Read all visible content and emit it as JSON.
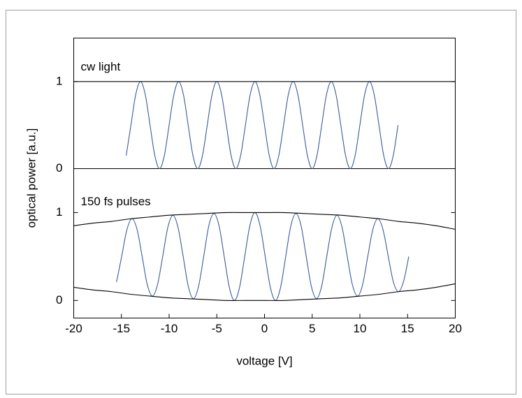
{
  "chart_data": [
    {
      "type": "line",
      "annotation": "cw light",
      "xlim": [
        -20,
        20
      ],
      "ylim": [
        0,
        1.5
      ],
      "yticks": [
        0,
        1
      ],
      "series": [
        {
          "color": "#3b5b9b",
          "x": [
            -14.5,
            -14,
            -13.5,
            -13,
            -12.5,
            -12,
            -11.5,
            -11,
            -10.5,
            -10,
            -9.5,
            -9,
            -8.5,
            -8,
            -7.5,
            -7,
            -6.5,
            -6,
            -5.5,
            -5,
            -4.5,
            -4,
            -3.5,
            -3,
            -2.5,
            -2,
            -1.5,
            -1,
            -0.5,
            0,
            0.5,
            1,
            1.5,
            2,
            2.5,
            3,
            3.5,
            4,
            4.5,
            5,
            5.5,
            6,
            6.5,
            7,
            7.5,
            8,
            8.5,
            9,
            9.5,
            10,
            10.5,
            11,
            11.5,
            12,
            12.5,
            13,
            13.5,
            14
          ],
          "values": [
            0.15,
            0.5,
            0.85,
            1,
            0.85,
            0.5,
            0.15,
            0,
            0.15,
            0.5,
            0.85,
            1,
            0.85,
            0.5,
            0.15,
            0,
            0.15,
            0.5,
            0.85,
            1,
            0.85,
            0.5,
            0.15,
            0,
            0.15,
            0.5,
            0.85,
            1,
            0.85,
            0.5,
            0.15,
            0,
            0.15,
            0.5,
            0.85,
            1,
            0.85,
            0.5,
            0.15,
            0,
            0.15,
            0.5,
            0.85,
            1,
            0.85,
            0.5,
            0.15,
            0,
            0.15,
            0.5,
            0.85,
            1,
            0.85,
            0.5,
            0.15,
            0,
            0.15,
            0.5
          ]
        },
        {
          "color": "#000000",
          "x": [
            -20,
            20
          ],
          "values": [
            1,
            1
          ]
        }
      ]
    },
    {
      "type": "line",
      "annotation": "150 fs pulses",
      "xlabel": "voltage [V]",
      "ylabel": "optical power [a.u.]",
      "xlim": [
        -20,
        20
      ],
      "ylim": [
        -0.2,
        1.5
      ],
      "yticks": [
        0,
        1
      ],
      "xticks": [
        -20,
        -15,
        -10,
        -5,
        0,
        5,
        10,
        15,
        20
      ],
      "series": [
        {
          "color": "#3b5b9b",
          "x": [
            -15.5125,
            -14.975,
            -14.4375,
            -13.9,
            -13.3625,
            -12.825,
            -12.2875,
            -11.75,
            -11.2125,
            -10.675,
            -10.1375,
            -9.6,
            -9.0625,
            -8.525,
            -7.9875,
            -7.45,
            -6.9125,
            -6.375,
            -5.8375,
            -5.3,
            -4.7625,
            -4.225,
            -3.6875,
            -3.15,
            -2.6125,
            -2.075,
            -1.5375,
            -1,
            -0.4625,
            0.075,
            0.6125,
            1.15,
            1.6875,
            2.225,
            2.7625,
            3.3,
            3.8375,
            4.375,
            4.9125,
            5.45,
            5.9875,
            6.525,
            7.0625,
            7.6,
            8.1375,
            8.675,
            9.2125,
            9.75,
            10.2875,
            10.825,
            11.3625,
            11.9,
            12.4375,
            12.975,
            13.5125,
            14.05,
            14.5875,
            15.125
          ],
          "values": [
            0.21,
            0.5,
            0.8,
            0.93,
            0.81,
            0.5,
            0.18,
            0.05,
            0.18,
            0.5,
            0.83,
            0.97,
            0.83,
            0.5,
            0.16,
            0.02,
            0.16,
            0.5,
            0.85,
            0.99,
            0.85,
            0.5,
            0.15,
            0,
            0.15,
            0.5,
            0.85,
            1,
            0.85,
            0.5,
            0.15,
            0,
            0.15,
            0.5,
            0.85,
            0.99,
            0.85,
            0.5,
            0.16,
            0.02,
            0.16,
            0.5,
            0.83,
            0.97,
            0.83,
            0.5,
            0.18,
            0.05,
            0.18,
            0.5,
            0.81,
            0.93,
            0.8,
            0.5,
            0.21,
            0.1,
            0.22,
            0.5
          ]
        },
        {
          "color": "#000000",
          "x": [
            -20,
            -18,
            -16,
            -14,
            -12,
            -10,
            -8,
            -6,
            -4,
            -2,
            0,
            2,
            4,
            6,
            8,
            10,
            12,
            14,
            16,
            18,
            20
          ],
          "values": [
            0.85,
            0.88,
            0.9,
            0.93,
            0.95,
            0.97,
            0.98,
            0.99,
            1,
            1,
            1,
            1,
            0.99,
            0.98,
            0.97,
            0.95,
            0.93,
            0.9,
            0.88,
            0.85,
            0.81
          ]
        },
        {
          "color": "#000000",
          "x": [
            -20,
            -18,
            -16,
            -14,
            -12,
            -10,
            -8,
            -6,
            -4,
            -2,
            0,
            2,
            4,
            6,
            8,
            10,
            12,
            14,
            16,
            18,
            20
          ],
          "values": [
            0.15,
            0.12,
            0.1,
            0.07,
            0.05,
            0.03,
            0.02,
            0.01,
            0,
            0,
            0,
            0,
            0.01,
            0.02,
            0.03,
            0.05,
            0.07,
            0.1,
            0.12,
            0.15,
            0.19
          ]
        }
      ]
    }
  ]
}
